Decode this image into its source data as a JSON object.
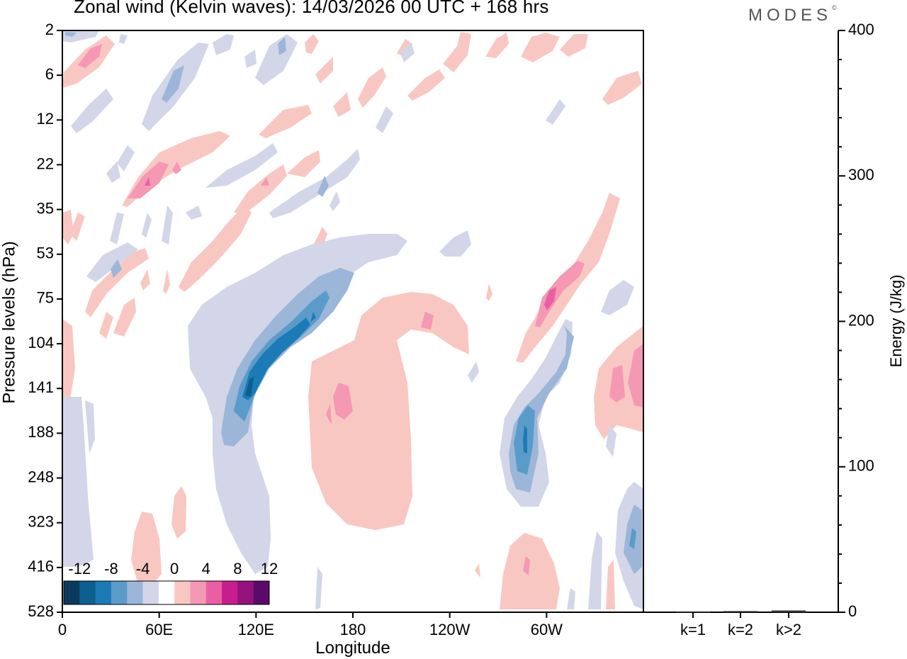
{
  "chart_data": [
    {
      "type": "heatmap",
      "title": "Zonal wind (Kelvin waves):  14/03/2026  00 UTC  + 168 hrs",
      "xlabel": "Longitude",
      "ylabel": "Pressure levels (hPa)",
      "x_ticks": [
        "0",
        "60E",
        "120E",
        "180",
        "120W",
        "60W"
      ],
      "x_tick_lon": [
        0,
        60,
        120,
        180,
        240,
        300
      ],
      "xlim": [
        0,
        360
      ],
      "y_ticks": [
        "2",
        "6",
        "12",
        "22",
        "35",
        "53",
        "75",
        "104",
        "141",
        "188",
        "248",
        "323",
        "416",
        "528"
      ],
      "y_axis": "top-down, pressure increasing",
      "colorbar": {
        "labels": [
          "-12",
          "-8",
          "-4",
          "0",
          "4",
          "8",
          "12"
        ],
        "levels": [
          -14,
          -12,
          -10,
          -8,
          -6,
          -4,
          -2,
          2,
          4,
          6,
          8,
          10,
          12,
          14
        ],
        "colors": [
          "#0c3a5c",
          "#0d5f90",
          "#1b7bb6",
          "#5b9bc9",
          "#9bb6d8",
          "#d3d6e8",
          "#ffffff",
          "#f9c7c2",
          "#f598b3",
          "#ea5fa3",
          "#c81d8c",
          "#93127b",
          "#5c0a6a"
        ],
        "placement": "bottom-left"
      },
      "features": [
        {
          "name": "negative anomaly core (blue)",
          "lon": 120,
          "level": "104",
          "value": -12
        },
        {
          "name": "negative anomaly core (blue)",
          "lon": 285,
          "level": "188",
          "value": -12
        },
        {
          "name": "positive anomaly (pink)",
          "lon": 175,
          "level": "141",
          "value": 6
        },
        {
          "name": "positive anomaly core (pink)",
          "lon": 302,
          "level": "75",
          "value": 10
        },
        {
          "name": "positive anomaly (pink)",
          "lon": 345,
          "level": "141",
          "value": 6
        }
      ]
    },
    {
      "type": "bar",
      "title": "",
      "categories": [
        "k=1",
        "k=2",
        "k>2"
      ],
      "values": [
        0.3,
        0.8,
        1.2
      ],
      "ylabel": "Energy (J/kg)",
      "y_ticks": [
        "0",
        "100",
        "200",
        "300",
        "400"
      ],
      "ylim": [
        0,
        400
      ]
    }
  ],
  "brand": {
    "name": "MODES",
    "mark": "©"
  },
  "colors": {
    "axis": "#000000",
    "background": "#ffffff"
  }
}
